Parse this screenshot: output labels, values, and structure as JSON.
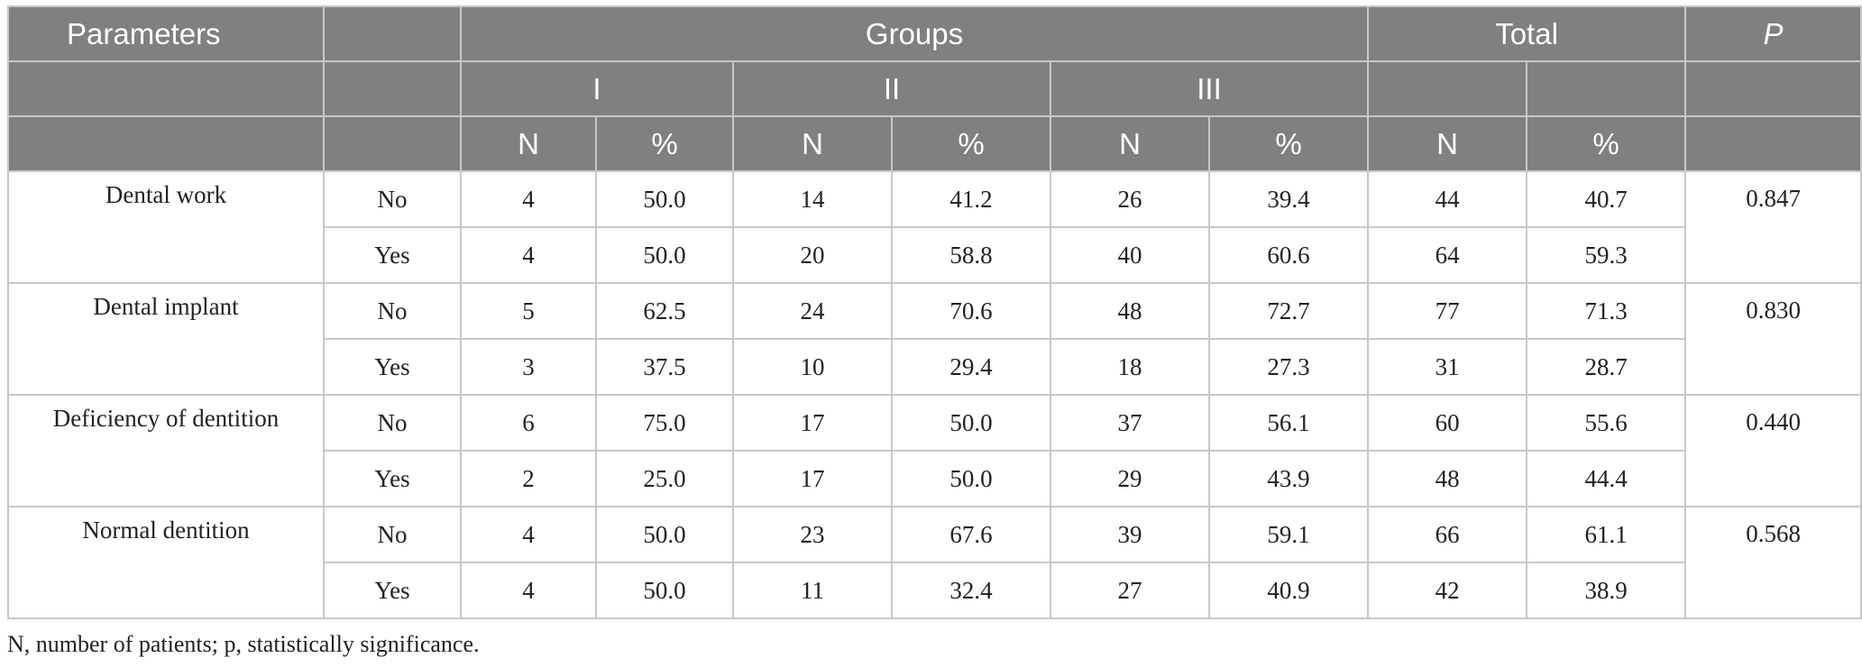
{
  "header": {
    "parameters": "Parameters",
    "groups": "Groups",
    "total": "Total",
    "p": "P",
    "group_names": [
      "I",
      "II",
      "III"
    ],
    "n_label": "N",
    "pct_label": "%"
  },
  "rows": [
    {
      "parameter": "Dental work",
      "p": "0.847",
      "sub": [
        {
          "label": "No",
          "values": [
            "4",
            "50.0",
            "14",
            "41.2",
            "26",
            "39.4",
            "44",
            "40.7"
          ]
        },
        {
          "label": "Yes",
          "values": [
            "4",
            "50.0",
            "20",
            "58.8",
            "40",
            "60.6",
            "64",
            "59.3"
          ]
        }
      ]
    },
    {
      "parameter": "Dental implant",
      "p": "0.830",
      "sub": [
        {
          "label": "No",
          "values": [
            "5",
            "62.5",
            "24",
            "70.6",
            "48",
            "72.7",
            "77",
            "71.3"
          ]
        },
        {
          "label": "Yes",
          "values": [
            "3",
            "37.5",
            "10",
            "29.4",
            "18",
            "27.3",
            "31",
            "28.7"
          ]
        }
      ]
    },
    {
      "parameter": "Deficiency of dentition",
      "p": "0.440",
      "sub": [
        {
          "label": "No",
          "values": [
            "6",
            "75.0",
            "17",
            "50.0",
            "37",
            "56.1",
            "60",
            "55.6"
          ]
        },
        {
          "label": "Yes",
          "values": [
            "2",
            "25.0",
            "17",
            "50.0",
            "29",
            "43.9",
            "48",
            "44.4"
          ]
        }
      ]
    },
    {
      "parameter": "Normal dentition",
      "p": "0.568",
      "sub": [
        {
          "label": "No",
          "values": [
            "4",
            "50.0",
            "23",
            "67.6",
            "39",
            "59.1",
            "66",
            "61.1"
          ]
        },
        {
          "label": "Yes",
          "values": [
            "4",
            "50.0",
            "11",
            "32.4",
            "27",
            "40.9",
            "42",
            "38.9"
          ]
        }
      ]
    }
  ],
  "footnote": "N, number of patients; p, statistically significance."
}
